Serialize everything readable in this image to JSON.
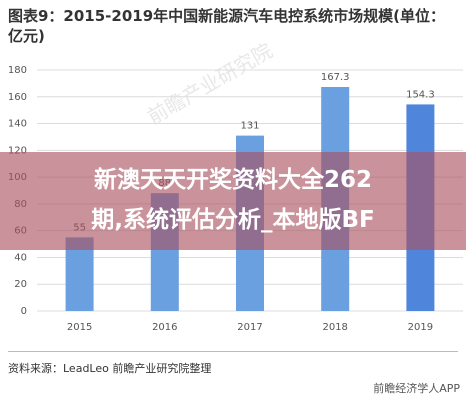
{
  "chart_data": {
    "type": "bar",
    "title": "图表9：2015-2019年中国新能源汽车电控系统市场规模(单位：亿元)",
    "categories": [
      "2015",
      "2016",
      "2017",
      "2018",
      "2019"
    ],
    "values": [
      55,
      88,
      131,
      167.3,
      154.3
    ],
    "colors": [
      "#6a9fe0",
      "#6a9fe0",
      "#6a9fe0",
      "#6a9fe0",
      "#4f86dc"
    ],
    "ylim": [
      0,
      180
    ],
    "yticks": [
      0,
      20,
      40,
      60,
      80,
      100,
      120,
      140,
      160,
      180
    ],
    "grid": true,
    "source": "资料来源：LeadLeo 前瞻产业研究院整理",
    "logo": "前瞻经济学人APP",
    "watermark": "前瞻产业研究院",
    "overlay_text": [
      "新澳天天开奖资料大全262",
      "期,系统评估分析_本地版BF"
    ]
  }
}
